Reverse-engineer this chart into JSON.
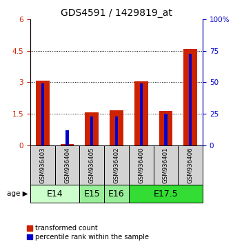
{
  "title": "GDS4591 / 1429819_at",
  "samples": [
    "GSM936403",
    "GSM936404",
    "GSM936405",
    "GSM936402",
    "GSM936400",
    "GSM936401",
    "GSM936406"
  ],
  "transformed_counts": [
    3.08,
    0.05,
    1.58,
    1.65,
    3.05,
    1.62,
    4.58
  ],
  "percentile_ranks_pct": [
    49,
    12,
    23,
    23,
    49,
    25,
    73
  ],
  "age_groups": [
    {
      "label": "E14",
      "samples": [
        "GSM936403",
        "GSM936404"
      ],
      "color": "#ccffcc"
    },
    {
      "label": "E15",
      "samples": [
        "GSM936405"
      ],
      "color": "#99ee99"
    },
    {
      "label": "E16",
      "samples": [
        "GSM936402"
      ],
      "color": "#99ee99"
    },
    {
      "label": "E17.5",
      "samples": [
        "GSM936400",
        "GSM936401",
        "GSM936406"
      ],
      "color": "#33dd33"
    }
  ],
  "ylim_left": [
    0,
    6
  ],
  "ylim_right": [
    0,
    100
  ],
  "yticks_left": [
    0,
    1.5,
    3.0,
    4.5,
    6.0
  ],
  "ytick_labels_left": [
    "0",
    "1.5",
    "3",
    "4.5",
    "6"
  ],
  "yticks_right": [
    0,
    25,
    50,
    75,
    100
  ],
  "ytick_labels_right": [
    "0",
    "25",
    "50",
    "75",
    "100%"
  ],
  "bar_color_red": "#cc2200",
  "bar_color_blue": "#0000cc",
  "red_bar_width": 0.55,
  "blue_bar_width": 0.12,
  "bg_color": "#ffffff",
  "title_fontsize": 10,
  "tick_fontsize": 7.5,
  "sample_fontsize": 6.2,
  "age_label_fontsize": 9,
  "legend_fontsize": 7
}
